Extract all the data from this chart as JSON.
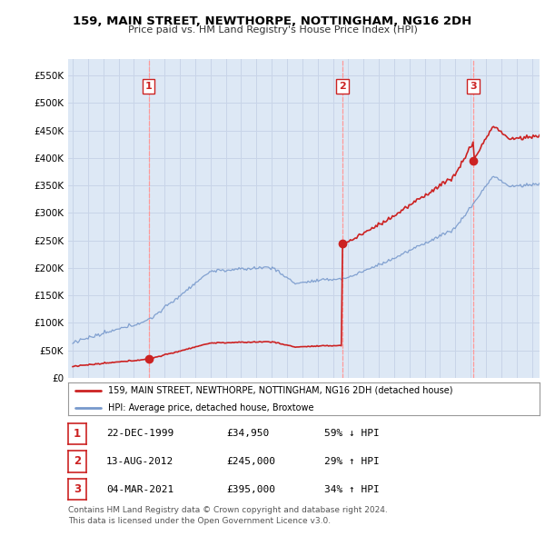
{
  "title": "159, MAIN STREET, NEWTHORPE, NOTTINGHAM, NG16 2DH",
  "subtitle": "Price paid vs. HM Land Registry's House Price Index (HPI)",
  "legend_line1": "159, MAIN STREET, NEWTHORPE, NOTTINGHAM, NG16 2DH (detached house)",
  "legend_line2": "HPI: Average price, detached house, Broxtowe",
  "footnote": "Contains HM Land Registry data © Crown copyright and database right 2024.\nThis data is licensed under the Open Government Licence v3.0.",
  "transactions": [
    {
      "num": 1,
      "date": "22-DEC-1999",
      "price": "£34,950",
      "hpi_text": "59% ↓ HPI",
      "year": 1999.97,
      "price_val": 34950
    },
    {
      "num": 2,
      "date": "13-AUG-2012",
      "price": "£245,000",
      "hpi_text": "29% ↑ HPI",
      "year": 2012.62,
      "price_val": 245000
    },
    {
      "num": 3,
      "date": "04-MAR-2021",
      "price": "£395,000",
      "hpi_text": "34% ↑ HPI",
      "year": 2021.17,
      "price_val": 395000
    }
  ],
  "ylim": [
    0,
    580000
  ],
  "yticks": [
    0,
    50000,
    100000,
    150000,
    200000,
    250000,
    300000,
    350000,
    400000,
    450000,
    500000,
    550000
  ],
  "ytick_labels": [
    "£0",
    "£50K",
    "£100K",
    "£150K",
    "£200K",
    "£250K",
    "£300K",
    "£350K",
    "£400K",
    "£450K",
    "£500K",
    "£550K"
  ],
  "xlim_start": 1994.7,
  "xlim_end": 2025.5,
  "xticks": [
    1995,
    1996,
    1997,
    1998,
    1999,
    2000,
    2001,
    2002,
    2003,
    2004,
    2005,
    2006,
    2007,
    2008,
    2009,
    2010,
    2011,
    2012,
    2013,
    2014,
    2015,
    2016,
    2017,
    2018,
    2019,
    2020,
    2021,
    2022,
    2023,
    2024,
    2025
  ],
  "hpi_color": "#7799cc",
  "sale_color": "#cc2222",
  "dashed_color": "#ff9999",
  "bg_color": "#dde8f5",
  "grid_color": "#c8d4e8"
}
